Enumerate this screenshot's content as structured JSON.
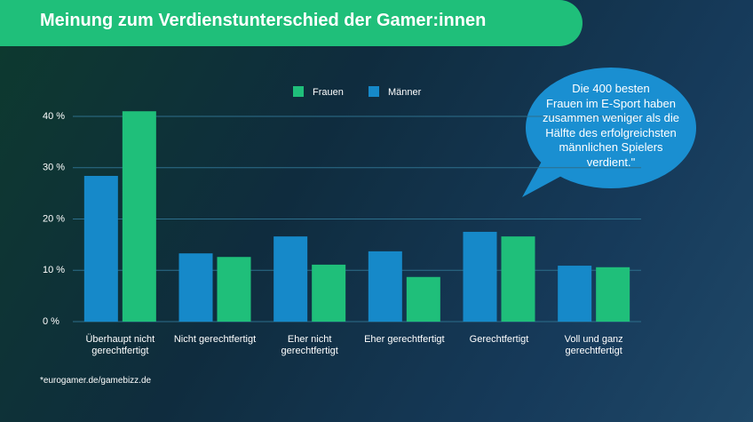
{
  "chart_data": {
    "type": "bar",
    "title": "Meinung zum Verdienstunterschied der Gamer:innen",
    "categories": [
      "Überhaupt nicht\ngerechtfertigt",
      "Nicht gerechtfertigt",
      "Eher nicht\ngerechtfertigt",
      "Eher gerechtfertigt",
      "Gerechtfertigt",
      "Voll und ganz\ngerechtfertigt"
    ],
    "series": [
      {
        "name": "Frauen",
        "color": "#1fbf7a",
        "values": [
          41,
          12.6,
          11.1,
          8.7,
          16.6,
          10.6
        ]
      },
      {
        "name": "Männer",
        "color": "#1689c9",
        "values": [
          28.4,
          13.3,
          16.6,
          13.7,
          17.5,
          10.9
        ]
      }
    ],
    "ylim": [
      0,
      40
    ],
    "yticks": [
      {
        "value": 0,
        "label": "0 %"
      },
      {
        "value": 10,
        "label": "10 %"
      },
      {
        "value": 20,
        "label": "20 %"
      },
      {
        "value": 30,
        "label": "30 %"
      },
      {
        "value": 40,
        "label": "40 %"
      }
    ],
    "grid": true,
    "annotation": "Die 400 besten\nFrauen im E-Sport haben\nzusammen weniger als die\nHälfte des erfolgreichsten\nmännlichen Spielers\nverdient.\"",
    "source": "*eurogamer.de/gamebizz.de"
  }
}
